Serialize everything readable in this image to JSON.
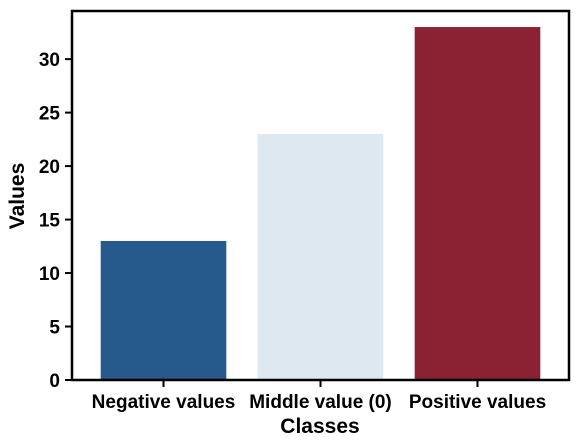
{
  "chart_data": {
    "type": "bar",
    "title": "",
    "xlabel": "Classes",
    "ylabel": "Values",
    "categories": [
      "Negative values",
      "Middle value (0)",
      "Positive values"
    ],
    "values": [
      13,
      23,
      33
    ],
    "colors": [
      "#265a8c",
      "#dde8f0",
      "#8b2233"
    ],
    "ylim": [
      0,
      34.5
    ],
    "yticks": [
      0,
      5,
      10,
      15,
      20,
      25,
      30
    ],
    "grid": false,
    "legend": "none"
  }
}
